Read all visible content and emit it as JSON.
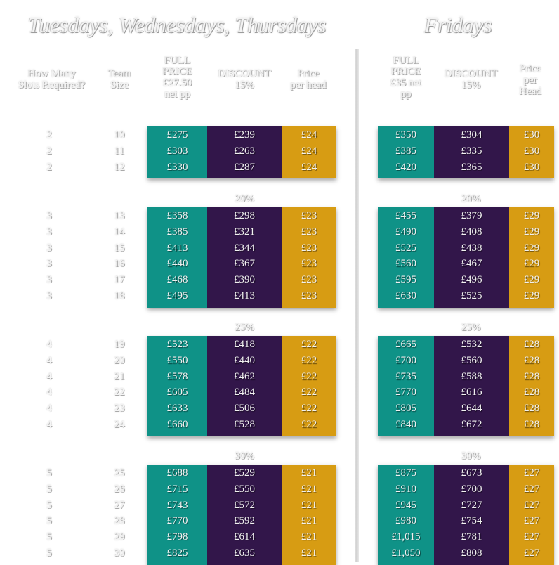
{
  "titles": {
    "left": "Tuesdays, Wednesdays, Thursdays",
    "right": "Fridays"
  },
  "headers": {
    "slots": "How Many\nSlots Required?",
    "team": "Team\nSize",
    "left": {
      "full": "FULL\nPRICE\n£27.50\nnet pp",
      "discount": "DISCOUNT\n15%",
      "per_head": "Price\nper head"
    },
    "right": {
      "full": "FULL\nPRICE\n£35 net\npp",
      "discount": "DISCOUNT\n15%",
      "per_head": "Price\nper\nHead"
    }
  },
  "colors": {
    "teal": "#0f9287",
    "purple": "#32164a",
    "gold": "#d79c13"
  },
  "groups": [
    {
      "discount_label": "",
      "rows": [
        {
          "slots": "2",
          "team": "10",
          "l_full": "£275",
          "l_disc": "£239",
          "l_head": "£24",
          "r_full": "£350",
          "r_disc": "£304",
          "r_head": "£30"
        },
        {
          "slots": "2",
          "team": "11",
          "l_full": "£303",
          "l_disc": "£263",
          "l_head": "£24",
          "r_full": "£385",
          "r_disc": "£335",
          "r_head": "£30"
        },
        {
          "slots": "2",
          "team": "12",
          "l_full": "£330",
          "l_disc": "£287",
          "l_head": "£24",
          "r_full": "£420",
          "r_disc": "£365",
          "r_head": "£30"
        }
      ]
    },
    {
      "discount_label": "20%",
      "rows": [
        {
          "slots": "3",
          "team": "13",
          "l_full": "£358",
          "l_disc": "£298",
          "l_head": "£23",
          "r_full": "£455",
          "r_disc": "£379",
          "r_head": "£29"
        },
        {
          "slots": "3",
          "team": "14",
          "l_full": "£385",
          "l_disc": "£321",
          "l_head": "£23",
          "r_full": "£490",
          "r_disc": "£408",
          "r_head": "£29"
        },
        {
          "slots": "3",
          "team": "15",
          "l_full": "£413",
          "l_disc": "£344",
          "l_head": "£23",
          "r_full": "£525",
          "r_disc": "£438",
          "r_head": "£29"
        },
        {
          "slots": "3",
          "team": "16",
          "l_full": "£440",
          "l_disc": "£367",
          "l_head": "£23",
          "r_full": "£560",
          "r_disc": "£467",
          "r_head": "£29"
        },
        {
          "slots": "3",
          "team": "17",
          "l_full": "£468",
          "l_disc": "£390",
          "l_head": "£23",
          "r_full": "£595",
          "r_disc": "£496",
          "r_head": "£29"
        },
        {
          "slots": "3",
          "team": "18",
          "l_full": "£495",
          "l_disc": "£413",
          "l_head": "£23",
          "r_full": "£630",
          "r_disc": "£525",
          "r_head": "£29"
        }
      ]
    },
    {
      "discount_label": "25%",
      "rows": [
        {
          "slots": "4",
          "team": "19",
          "l_full": "£523",
          "l_disc": "£418",
          "l_head": "£22",
          "r_full": "£665",
          "r_disc": "£532",
          "r_head": "£28"
        },
        {
          "slots": "4",
          "team": "20",
          "l_full": "£550",
          "l_disc": "£440",
          "l_head": "£22",
          "r_full": "£700",
          "r_disc": "£560",
          "r_head": "£28"
        },
        {
          "slots": "4",
          "team": "21",
          "l_full": "£578",
          "l_disc": "£462",
          "l_head": "£22",
          "r_full": "£735",
          "r_disc": "£588",
          "r_head": "£28"
        },
        {
          "slots": "4",
          "team": "22",
          "l_full": "£605",
          "l_disc": "£484",
          "l_head": "£22",
          "r_full": "£770",
          "r_disc": "£616",
          "r_head": "£28"
        },
        {
          "slots": "4",
          "team": "23",
          "l_full": "£633",
          "l_disc": "£506",
          "l_head": "£22",
          "r_full": "£805",
          "r_disc": "£644",
          "r_head": "£28"
        },
        {
          "slots": "4",
          "team": "24",
          "l_full": "£660",
          "l_disc": "£528",
          "l_head": "£22",
          "r_full": "£840",
          "r_disc": "£672",
          "r_head": "£28"
        }
      ]
    },
    {
      "discount_label": "30%",
      "rows": [
        {
          "slots": "5",
          "team": "25",
          "l_full": "£688",
          "l_disc": "£529",
          "l_head": "£21",
          "r_full": "£875",
          "r_disc": "£673",
          "r_head": "£27"
        },
        {
          "slots": "5",
          "team": "26",
          "l_full": "£715",
          "l_disc": "£550",
          "l_head": "£21",
          "r_full": "£910",
          "r_disc": "£700",
          "r_head": "£27"
        },
        {
          "slots": "5",
          "team": "27",
          "l_full": "£743",
          "l_disc": "£572",
          "l_head": "£21",
          "r_full": "£945",
          "r_disc": "£727",
          "r_head": "£27"
        },
        {
          "slots": "5",
          "team": "28",
          "l_full": "£770",
          "l_disc": "£592",
          "l_head": "£21",
          "r_full": "£980",
          "r_disc": "£754",
          "r_head": "£27"
        },
        {
          "slots": "5",
          "team": "29",
          "l_full": "£798",
          "l_disc": "£614",
          "l_head": "£21",
          "r_full": "£1,015",
          "r_disc": "£781",
          "r_head": "£27"
        },
        {
          "slots": "5",
          "team": "30",
          "l_full": "£825",
          "l_disc": "£635",
          "l_head": "£21",
          "r_full": "£1,050",
          "r_disc": "£808",
          "r_head": "£27"
        }
      ]
    }
  ]
}
